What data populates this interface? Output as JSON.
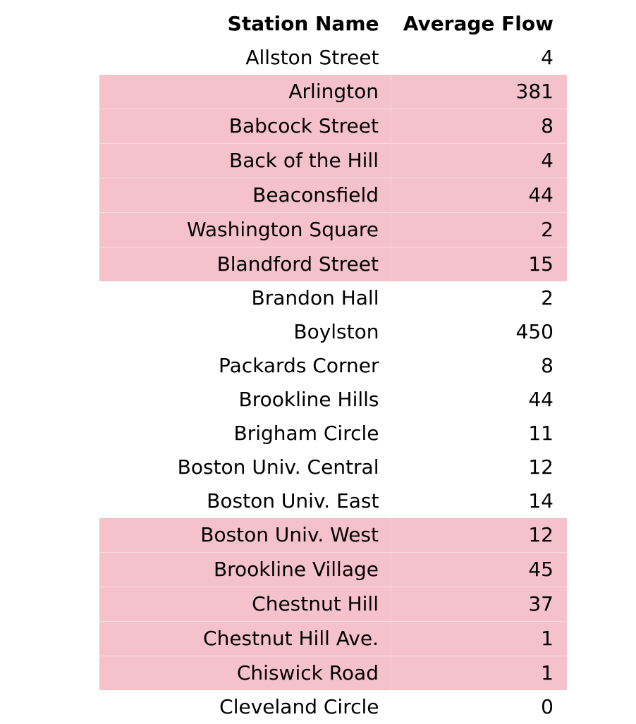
{
  "table": {
    "headers": {
      "station": "Station Name",
      "flow": "Average Flow"
    },
    "rows": [
      {
        "station": "Allston Street",
        "flow": "4",
        "highlight": false
      },
      {
        "station": "Arlington",
        "flow": "381",
        "highlight": true
      },
      {
        "station": "Babcock Street",
        "flow": "8",
        "highlight": true
      },
      {
        "station": "Back of the Hill",
        "flow": "4",
        "highlight": true
      },
      {
        "station": "Beaconsfield",
        "flow": "44",
        "highlight": true
      },
      {
        "station": "Washington Square",
        "flow": "2",
        "highlight": true
      },
      {
        "station": "Blandford Street",
        "flow": "15",
        "highlight": true
      },
      {
        "station": "Brandon Hall",
        "flow": "2",
        "highlight": false
      },
      {
        "station": "Boylston",
        "flow": "450",
        "highlight": false
      },
      {
        "station": "Packards Corner",
        "flow": "8",
        "highlight": false
      },
      {
        "station": "Brookline Hills",
        "flow": "44",
        "highlight": false
      },
      {
        "station": "Brigham Circle",
        "flow": "11",
        "highlight": false
      },
      {
        "station": "Boston Univ. Central",
        "flow": "12",
        "highlight": false
      },
      {
        "station": "Boston Univ. East",
        "flow": "14",
        "highlight": false
      },
      {
        "station": "Boston Univ. West",
        "flow": "12",
        "highlight": true
      },
      {
        "station": "Brookline Village",
        "flow": "45",
        "highlight": true
      },
      {
        "station": "Chestnut Hill",
        "flow": "37",
        "highlight": true
      },
      {
        "station": "Chestnut Hill Ave.",
        "flow": "1",
        "highlight": true
      },
      {
        "station": "Chiswick Road",
        "flow": "1",
        "highlight": true
      },
      {
        "station": "Cleveland Circle",
        "flow": "0",
        "highlight": false
      }
    ]
  },
  "colors": {
    "highlight": "#f5c2cb",
    "text": "#000000",
    "background": "#ffffff"
  }
}
